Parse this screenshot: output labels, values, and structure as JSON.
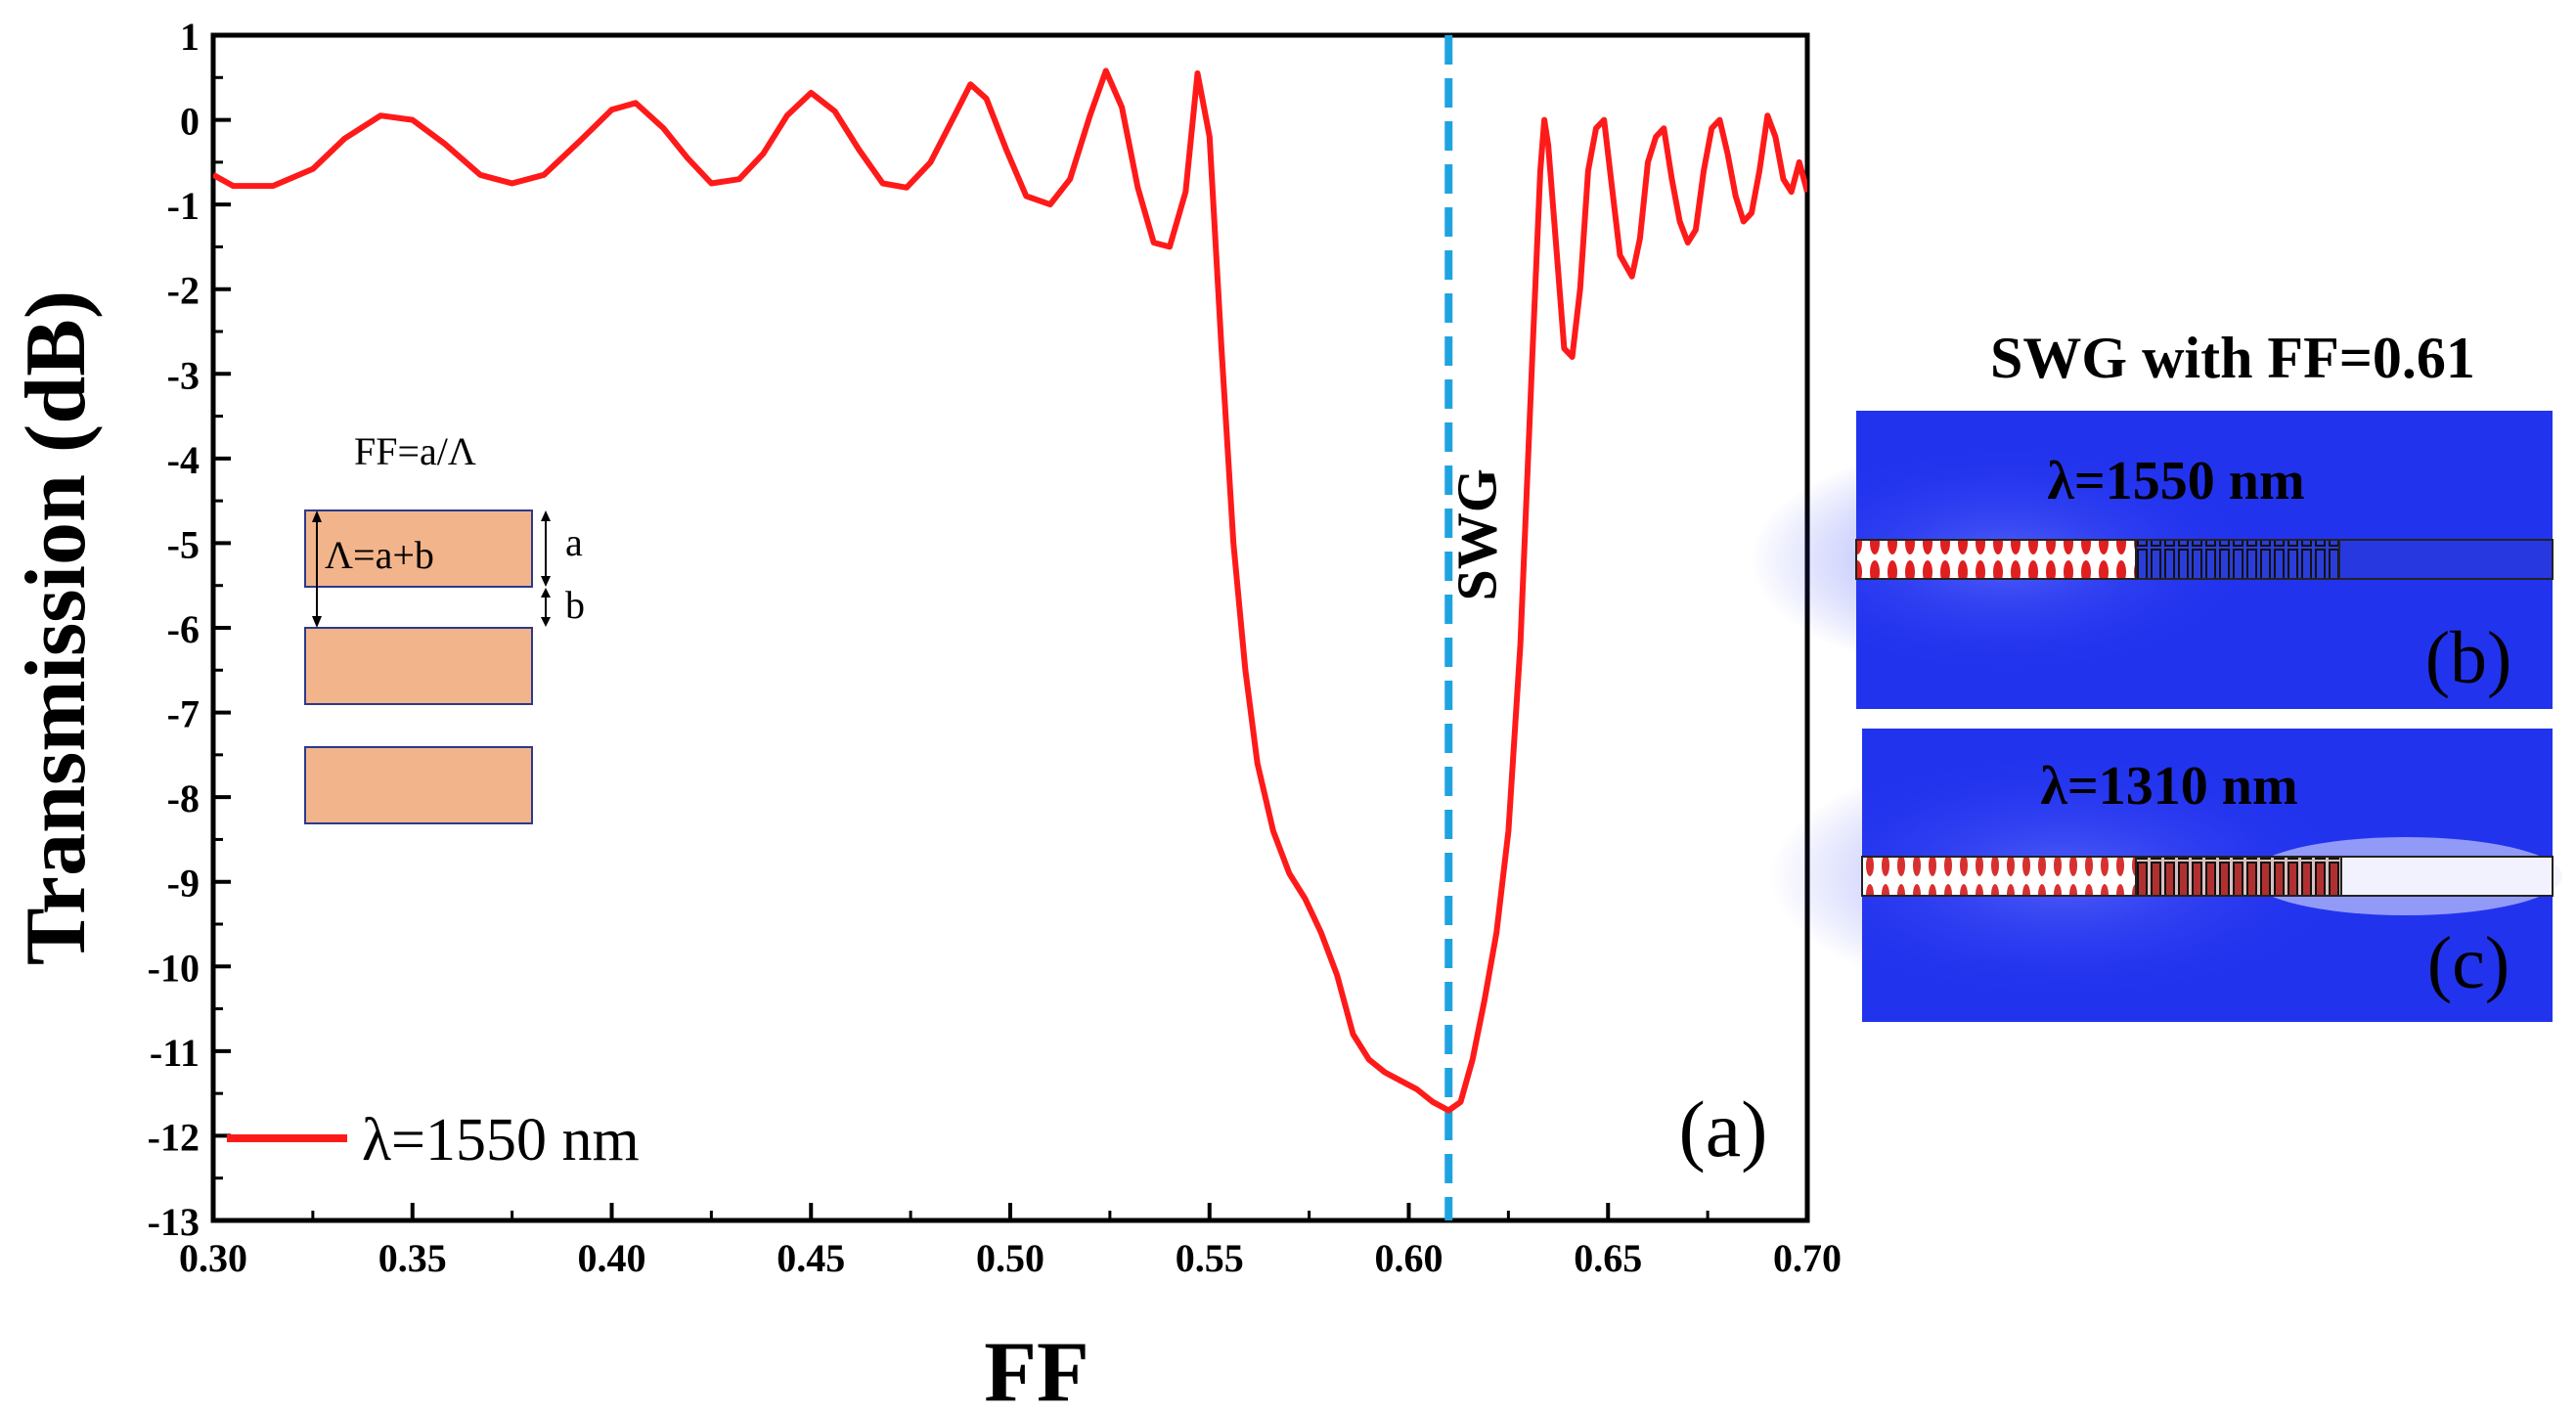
{
  "chart_data": [
    {
      "panel": "(a)",
      "type": "line",
      "xlabel": "FF",
      "ylabel": "Transmission (dB)",
      "xlim": [
        0.3,
        0.7
      ],
      "ylim": [
        -13,
        1
      ],
      "xticks": [
        "0.30",
        "0.35",
        "0.40",
        "0.45",
        "0.50",
        "0.55",
        "0.60",
        "0.65",
        "0.70"
      ],
      "yticks": [
        "1",
        "0",
        "-1",
        "-2",
        "-3",
        "-4",
        "-5",
        "-6",
        "-7",
        "-8",
        "-9",
        "-10",
        "-11",
        "-12",
        "-13"
      ],
      "series": [
        {
          "name": "λ=1550 nm",
          "color": "#ff1a1a",
          "x": [
            0.3,
            0.305,
            0.315,
            0.325,
            0.333,
            0.342,
            0.35,
            0.358,
            0.367,
            0.375,
            0.383,
            0.392,
            0.4,
            0.406,
            0.413,
            0.419,
            0.425,
            0.432,
            0.438,
            0.444,
            0.45,
            0.456,
            0.462,
            0.468,
            0.474,
            0.48,
            0.486,
            0.49,
            0.494,
            0.499,
            0.504,
            0.51,
            0.515,
            0.52,
            0.524,
            0.528,
            0.532,
            0.536,
            0.54,
            0.544,
            0.547,
            0.55,
            0.553,
            0.556,
            0.559,
            0.562,
            0.566,
            0.57,
            0.574,
            0.578,
            0.582,
            0.586,
            0.59,
            0.594,
            0.598,
            0.602,
            0.606,
            0.61,
            0.613,
            0.616,
            0.619,
            0.622,
            0.625,
            0.628,
            0.631,
            0.633,
            0.634,
            0.635,
            0.637,
            0.639,
            0.641,
            0.643,
            0.645,
            0.647,
            0.649,
            0.651,
            0.653,
            0.656,
            0.658,
            0.66,
            0.662,
            0.664,
            0.666,
            0.668,
            0.67,
            0.672,
            0.674,
            0.676,
            0.678,
            0.68,
            0.682,
            0.684,
            0.686,
            0.688,
            0.69,
            0.692,
            0.694,
            0.696,
            0.698,
            0.7
          ],
          "y": [
            -0.65,
            -0.78,
            -0.78,
            -0.58,
            -0.22,
            0.05,
            0.0,
            -0.28,
            -0.65,
            -0.75,
            -0.65,
            -0.25,
            0.12,
            0.2,
            -0.1,
            -0.45,
            -0.75,
            -0.7,
            -0.4,
            0.05,
            0.32,
            0.1,
            -0.35,
            -0.75,
            -0.8,
            -0.5,
            0.05,
            0.42,
            0.25,
            -0.35,
            -0.9,
            -1.0,
            -0.7,
            0.05,
            0.58,
            0.15,
            -0.8,
            -1.45,
            -1.5,
            -0.85,
            0.55,
            -0.2,
            -2.7,
            -5.0,
            -6.5,
            -7.6,
            -8.4,
            -8.9,
            -9.2,
            -9.6,
            -10.1,
            -10.8,
            -11.1,
            -11.25,
            -11.35,
            -11.45,
            -11.6,
            -11.7,
            -11.6,
            -11.1,
            -10.4,
            -9.6,
            -8.4,
            -6.2,
            -2.8,
            -0.6,
            0.0,
            -0.3,
            -1.5,
            -2.7,
            -2.8,
            -2.0,
            -0.6,
            -0.1,
            0.0,
            -0.8,
            -1.6,
            -1.85,
            -1.4,
            -0.5,
            -0.2,
            -0.1,
            -0.7,
            -1.2,
            -1.45,
            -1.3,
            -0.6,
            -0.1,
            0.0,
            -0.4,
            -0.9,
            -1.2,
            -1.1,
            -0.6,
            0.05,
            -0.2,
            -0.7,
            -0.85,
            -0.5,
            -0.85
          ]
        }
      ],
      "vline": {
        "x": 0.61,
        "label": "SWG",
        "color": "#1fa3e0"
      },
      "legend": {
        "label": "λ=1550 nm",
        "placement": "bottom-left"
      },
      "panel_label": "(a)",
      "inset": {
        "formula": "FF=a/Λ",
        "period_label": "Λ=a+b",
        "a_label": "a",
        "b_label": "b",
        "block_color": "#f2b48a",
        "block_border": "#2b3a8f"
      }
    },
    {
      "title": "SWG with FF=0.61",
      "type": "field-map",
      "panels": [
        {
          "label": "(b)",
          "wavelength": "λ=1550 nm"
        },
        {
          "label": "(c)",
          "wavelength": "λ=1310 nm"
        }
      ]
    }
  ]
}
